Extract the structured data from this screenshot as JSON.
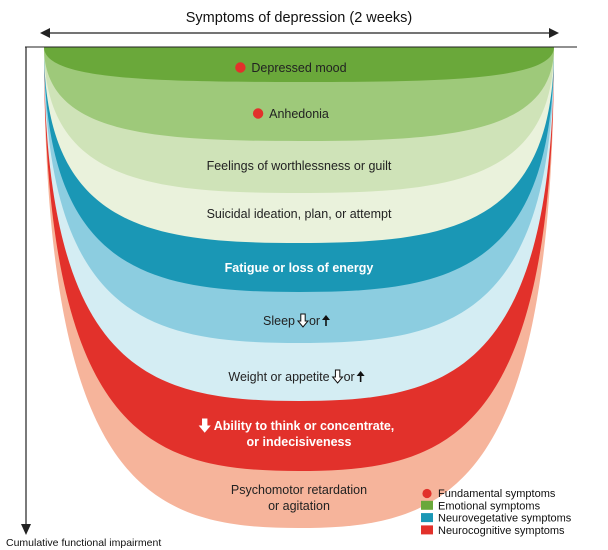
{
  "header": {
    "title": "Symptoms of depression (2 weeks)"
  },
  "axis": {
    "y_label": "Cumulative functional impairment"
  },
  "layers": [
    {
      "label": "Depressed mood",
      "category": "emotional",
      "fundamental": true,
      "color": "#6aa83a",
      "text_color": "#222222"
    },
    {
      "label": "Anhedonia",
      "category": "emotional",
      "fundamental": true,
      "color": "#9ec97a",
      "text_color": "#222222"
    },
    {
      "label": "Feelings of worthlessness or guilt",
      "category": "emotional",
      "fundamental": false,
      "color": "#cfe3b8",
      "text_color": "#222222"
    },
    {
      "label": "Suicidal ideation, plan, or attempt",
      "category": "emotional",
      "fundamental": false,
      "color": "#eaf2dc",
      "text_color": "#222222"
    },
    {
      "label": "Fatigue or loss of energy",
      "category": "neurovegetative",
      "fundamental": false,
      "color": "#1a97b5",
      "text_color": "#ffffff",
      "bold": true
    },
    {
      "label": "Sleep",
      "category": "neurovegetative",
      "fundamental": false,
      "color": "#8ccde0",
      "text_color": "#222222",
      "arrows": true
    },
    {
      "label": "Weight or appetite",
      "category": "neurovegetative",
      "fundamental": false,
      "color": "#d4edf3",
      "text_color": "#222222",
      "arrows": true
    },
    {
      "label": "Ability to think or concentrate,",
      "label_line2": "or indecisiveness",
      "category": "neurocognitive",
      "fundamental": false,
      "color": "#e2312b",
      "text_color": "#ffffff",
      "bold": true,
      "lead_arrow": true
    },
    {
      "label": "Psychomotor retardation",
      "label_line2": "or agitation",
      "category": "neurocognitive",
      "fundamental": false,
      "color": "#f6b49b",
      "text_color": "#222222"
    }
  ],
  "arrow_connector": "or",
  "legend": [
    {
      "label": "Fundamental symptoms",
      "marker": "dot",
      "color": "#e2312b"
    },
    {
      "label": "Emotional symptoms",
      "marker": "square",
      "color": "#6aa83a"
    },
    {
      "label": "Neurovegetative symptoms",
      "marker": "square",
      "color": "#1a97b5"
    },
    {
      "label": "Neurocognitive symptoms",
      "marker": "square",
      "color": "#e2312b"
    }
  ]
}
